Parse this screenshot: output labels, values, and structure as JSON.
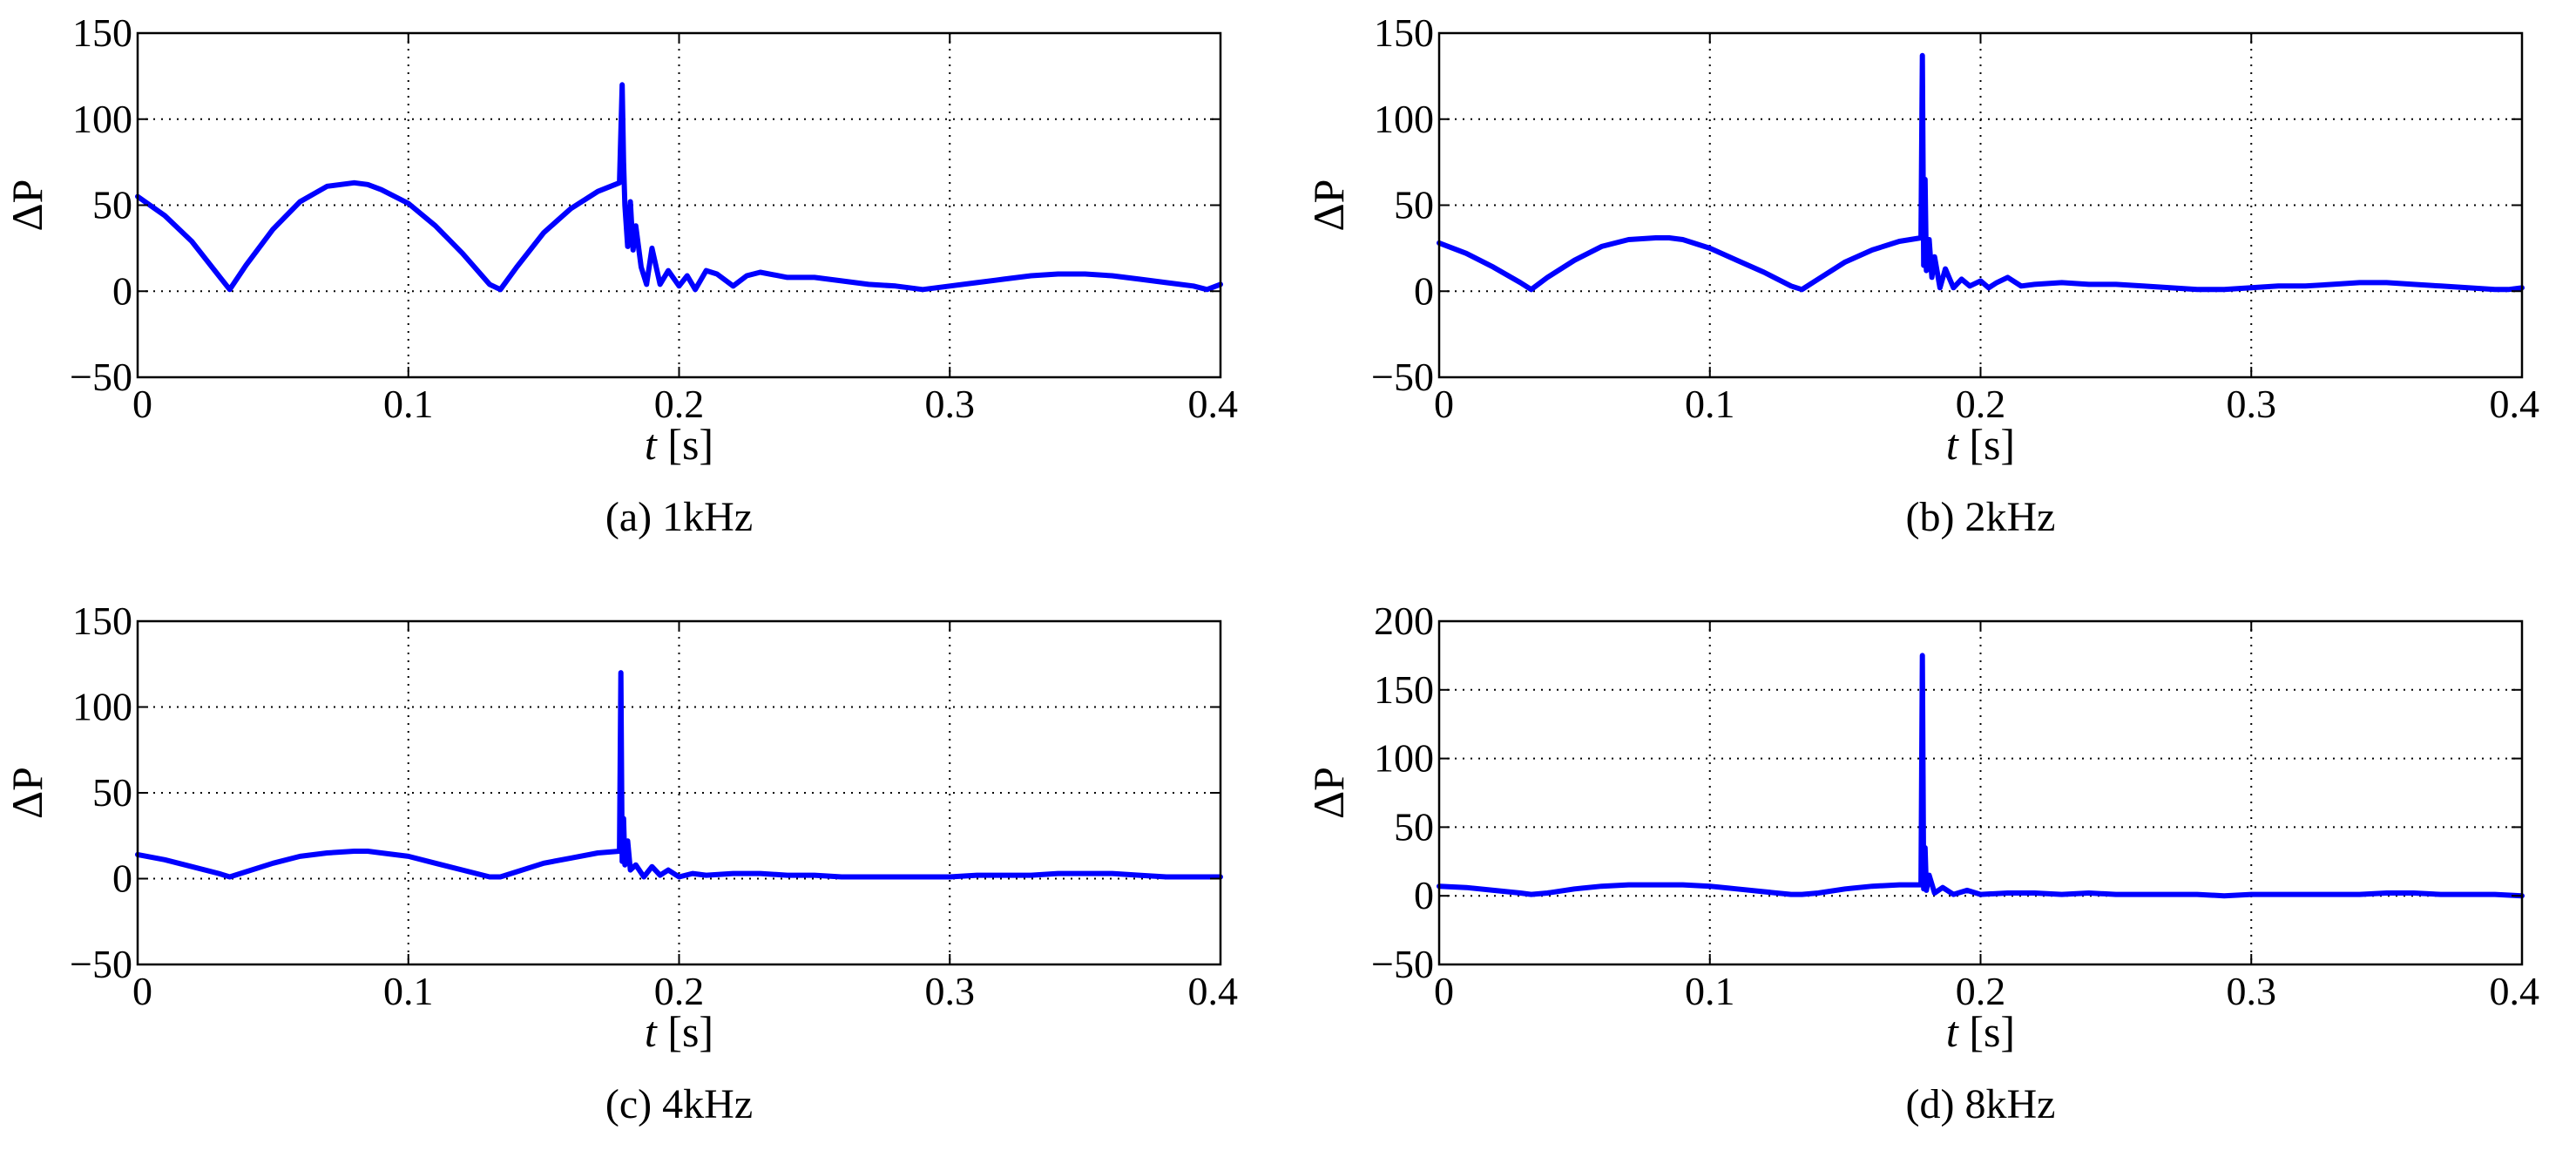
{
  "chart_data": [
    {
      "type": "line",
      "caption": "(a) 1kHz",
      "xlabel": {
        "var": "t",
        "unit": "[s]"
      },
      "ylabel": {
        "var": "ΔP"
      },
      "xlim": [
        0,
        0.4
      ],
      "ylim": [
        -50,
        150
      ],
      "xticks": [
        "0",
        "0.1",
        "0.2",
        "0.3",
        "0.4"
      ],
      "yticks": [
        "−50",
        "0",
        "50",
        "100",
        "150"
      ],
      "grid": true,
      "line_color": "#0000ff",
      "series": [
        {
          "x": [
            0,
            0.01,
            0.02,
            0.03,
            0.034,
            0.04,
            0.05,
            0.06,
            0.07,
            0.08,
            0.085,
            0.09,
            0.1,
            0.11,
            0.12,
            0.13,
            0.134,
            0.14,
            0.15,
            0.16,
            0.17,
            0.178,
            0.179,
            0.1795,
            0.18,
            0.181,
            0.182,
            0.183,
            0.184,
            0.186,
            0.188,
            0.19,
            0.193,
            0.196,
            0.2,
            0.203,
            0.206,
            0.21,
            0.214,
            0.22,
            0.225,
            0.23,
            0.24,
            0.25,
            0.26,
            0.27,
            0.28,
            0.29,
            0.3,
            0.31,
            0.32,
            0.33,
            0.34,
            0.35,
            0.36,
            0.37,
            0.38,
            0.39,
            0.395,
            0.4
          ],
          "y": [
            55,
            44,
            29,
            9,
            1,
            15,
            36,
            52,
            61,
            63,
            62,
            59,
            51,
            38,
            22,
            4,
            1,
            14,
            34,
            48,
            58,
            63,
            120,
            75,
            50,
            26,
            52,
            24,
            38,
            14,
            4,
            25,
            4,
            12,
            3,
            9,
            1,
            12,
            10,
            3,
            9,
            11,
            8,
            8,
            6,
            4,
            3,
            1,
            3,
            5,
            7,
            9,
            10,
            10,
            9,
            7,
            5,
            3,
            1,
            4
          ]
        }
      ]
    },
    {
      "type": "line",
      "caption": "(b) 2kHz",
      "xlabel": {
        "var": "t",
        "unit": "[s]"
      },
      "ylabel": {
        "var": "ΔP"
      },
      "xlim": [
        0,
        0.4
      ],
      "ylim": [
        -50,
        150
      ],
      "xticks": [
        "0",
        "0.1",
        "0.2",
        "0.3",
        "0.4"
      ],
      "yticks": [
        "−50",
        "0",
        "50",
        "100",
        "150"
      ],
      "grid": true,
      "line_color": "#0000ff",
      "series": [
        {
          "x": [
            0,
            0.01,
            0.02,
            0.03,
            0.034,
            0.04,
            0.05,
            0.06,
            0.07,
            0.08,
            0.085,
            0.09,
            0.1,
            0.11,
            0.12,
            0.13,
            0.134,
            0.14,
            0.15,
            0.16,
            0.17,
            0.178,
            0.1785,
            0.179,
            0.1795,
            0.18,
            0.181,
            0.182,
            0.183,
            0.185,
            0.187,
            0.19,
            0.193,
            0.196,
            0.2,
            0.203,
            0.206,
            0.21,
            0.215,
            0.22,
            0.23,
            0.24,
            0.25,
            0.26,
            0.27,
            0.28,
            0.29,
            0.3,
            0.31,
            0.32,
            0.33,
            0.34,
            0.35,
            0.36,
            0.37,
            0.38,
            0.39,
            0.395,
            0.4
          ],
          "y": [
            28,
            22,
            14,
            5,
            1,
            8,
            18,
            26,
            30,
            31,
            31,
            30,
            25,
            18,
            11,
            3,
            1,
            7,
            17,
            24,
            29,
            31,
            137,
            15,
            65,
            12,
            30,
            8,
            20,
            2,
            13,
            2,
            7,
            3,
            6,
            2,
            5,
            8,
            3,
            4,
            5,
            4,
            4,
            3,
            2,
            1,
            1,
            2,
            3,
            3,
            4,
            5,
            5,
            4,
            3,
            2,
            1,
            1,
            2
          ]
        }
      ]
    },
    {
      "type": "line",
      "caption": "(c) 4kHz",
      "xlabel": {
        "var": "t",
        "unit": "[s]"
      },
      "ylabel": {
        "var": "ΔP"
      },
      "xlim": [
        0,
        0.4
      ],
      "ylim": [
        -50,
        150
      ],
      "xticks": [
        "0",
        "0.1",
        "0.2",
        "0.3",
        "0.4"
      ],
      "yticks": [
        "−50",
        "0",
        "50",
        "100",
        "150"
      ],
      "grid": true,
      "line_color": "#0000ff",
      "series": [
        {
          "x": [
            0,
            0.01,
            0.02,
            0.03,
            0.034,
            0.04,
            0.05,
            0.06,
            0.07,
            0.08,
            0.085,
            0.09,
            0.1,
            0.11,
            0.12,
            0.13,
            0.134,
            0.14,
            0.15,
            0.16,
            0.17,
            0.178,
            0.1785,
            0.179,
            0.1795,
            0.18,
            0.181,
            0.182,
            0.184,
            0.187,
            0.19,
            0.193,
            0.196,
            0.2,
            0.205,
            0.21,
            0.22,
            0.23,
            0.24,
            0.25,
            0.26,
            0.27,
            0.28,
            0.29,
            0.3,
            0.31,
            0.32,
            0.33,
            0.34,
            0.35,
            0.36,
            0.37,
            0.38,
            0.39,
            0.4
          ],
          "y": [
            14,
            11,
            7,
            3,
            1,
            4,
            9,
            13,
            15,
            16,
            16,
            15,
            13,
            9,
            5,
            1,
            1,
            4,
            9,
            12,
            15,
            16,
            120,
            10,
            35,
            8,
            22,
            5,
            8,
            1,
            7,
            2,
            5,
            1,
            3,
            2,
            3,
            3,
            2,
            2,
            1,
            1,
            1,
            1,
            1,
            2,
            2,
            2,
            3,
            3,
            3,
            2,
            1,
            1,
            1
          ]
        }
      ]
    },
    {
      "type": "line",
      "caption": "(d) 8kHz",
      "xlabel": {
        "var": "t",
        "unit": "[s]"
      },
      "ylabel": {
        "var": "ΔP"
      },
      "xlim": [
        0,
        0.4
      ],
      "ylim": [
        -50,
        200
      ],
      "xticks": [
        "0",
        "0.1",
        "0.2",
        "0.3",
        "0.4"
      ],
      "yticks": [
        "−50",
        "0",
        "50",
        "100",
        "150",
        "200"
      ],
      "grid": true,
      "line_color": "#0000ff",
      "series": [
        {
          "x": [
            0,
            0.01,
            0.02,
            0.03,
            0.034,
            0.04,
            0.05,
            0.06,
            0.07,
            0.08,
            0.085,
            0.09,
            0.1,
            0.11,
            0.12,
            0.13,
            0.134,
            0.14,
            0.15,
            0.16,
            0.17,
            0.178,
            0.1785,
            0.179,
            0.1795,
            0.18,
            0.181,
            0.183,
            0.186,
            0.19,
            0.195,
            0.2,
            0.21,
            0.22,
            0.23,
            0.24,
            0.25,
            0.26,
            0.27,
            0.28,
            0.29,
            0.3,
            0.31,
            0.32,
            0.33,
            0.34,
            0.35,
            0.36,
            0.37,
            0.38,
            0.39,
            0.4
          ],
          "y": [
            7,
            6,
            4,
            2,
            1,
            2,
            5,
            7,
            8,
            8,
            8,
            8,
            7,
            5,
            3,
            1,
            1,
            2,
            5,
            7,
            8,
            8,
            175,
            5,
            35,
            4,
            15,
            2,
            6,
            1,
            4,
            1,
            2,
            2,
            1,
            2,
            1,
            1,
            1,
            1,
            0,
            1,
            1,
            1,
            1,
            1,
            2,
            2,
            1,
            1,
            1,
            0
          ]
        }
      ]
    }
  ]
}
